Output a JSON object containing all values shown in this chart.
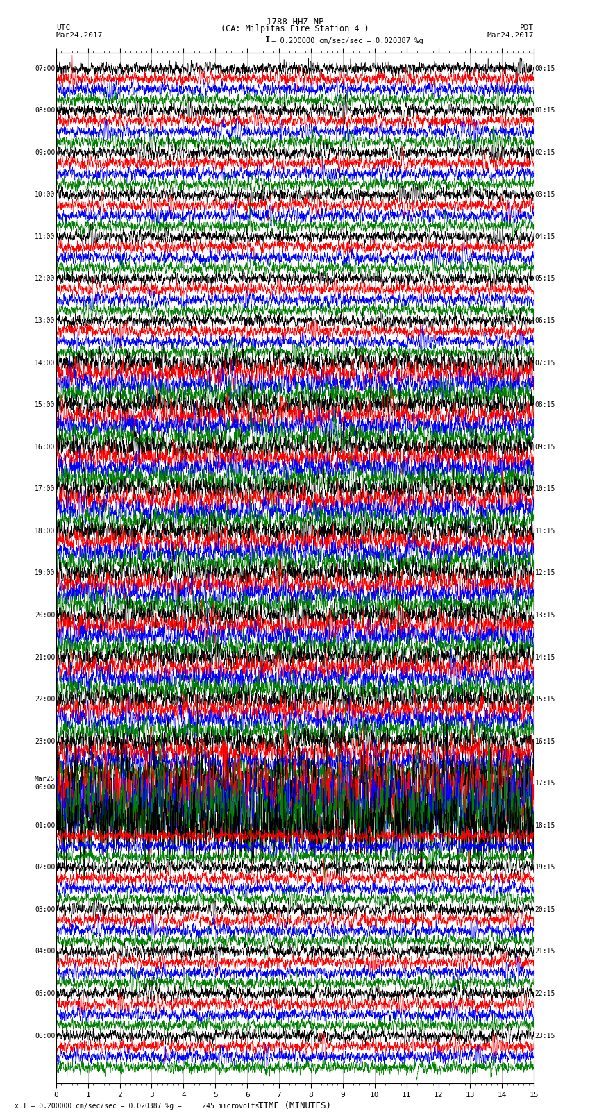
{
  "title_line1": "1788 HHZ NP",
  "title_line2": "(CA: Milpitas Fire Station 4 )",
  "label_utc": "UTC",
  "label_pdt": "PDT",
  "date_left": "Mar24,2017",
  "date_right": "Mar24,2017",
  "scale_text": "= 0.200000 cm/sec/sec = 0.020387 %g",
  "scale_bar_char": "I",
  "footer_text": "x I = 0.200000 cm/sec/sec = 0.020387 %g =     245 microvolts.",
  "xlabel": "TIME (MINUTES)",
  "xlim": [
    0,
    15
  ],
  "xticks": [
    0,
    1,
    2,
    3,
    4,
    5,
    6,
    7,
    8,
    9,
    10,
    11,
    12,
    13,
    14,
    15
  ],
  "colors_cycle": [
    "black",
    "red",
    "blue",
    "green"
  ],
  "num_traces": 96,
  "background_color": "#ffffff",
  "fig_width": 8.5,
  "fig_height": 16.13,
  "dpi": 100,
  "left_label_times": [
    "07:00",
    "08:00",
    "09:00",
    "10:00",
    "11:00",
    "12:00",
    "13:00",
    "14:00",
    "15:00",
    "16:00",
    "17:00",
    "18:00",
    "19:00",
    "20:00",
    "21:00",
    "22:00",
    "23:00",
    "Mar25\n00:00",
    "01:00",
    "02:00",
    "03:00",
    "04:00",
    "05:00",
    "06:00"
  ],
  "right_label_times": [
    "00:15",
    "01:15",
    "02:15",
    "03:15",
    "04:15",
    "05:15",
    "06:15",
    "07:15",
    "08:15",
    "09:15",
    "10:15",
    "11:15",
    "12:15",
    "13:15",
    "14:15",
    "15:15",
    "16:15",
    "17:15",
    "18:15",
    "19:15",
    "20:15",
    "21:15",
    "22:15",
    "23:15"
  ],
  "grid_color": "#888888",
  "grid_lw": 0.4
}
